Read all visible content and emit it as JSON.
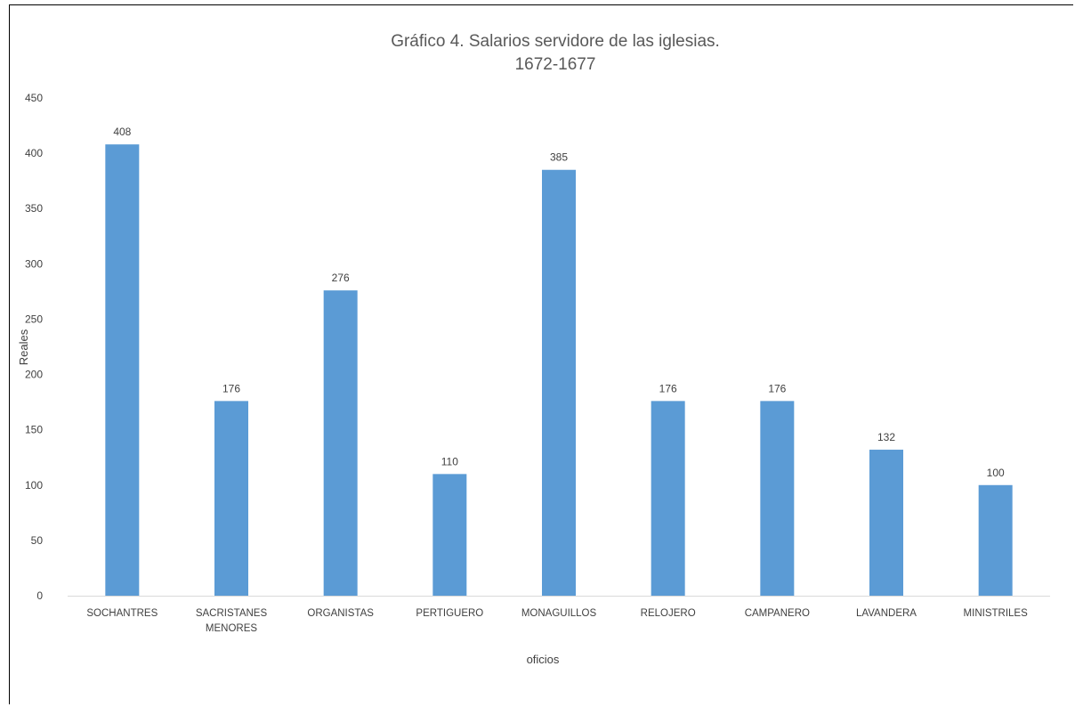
{
  "chart_data": {
    "type": "bar",
    "title_line1": "Gráfico 4. Salarios servidore de las iglesias.",
    "title_line2": "1672-1677",
    "xlabel": "oficios",
    "ylabel": "Reales",
    "ylim": [
      0,
      450
    ],
    "yticks": [
      0,
      50,
      100,
      150,
      200,
      250,
      300,
      350,
      400,
      450
    ],
    "grid": false,
    "legend": "none",
    "bar_color": "#5b9bd5",
    "categories": [
      [
        "SOCHANTRES"
      ],
      [
        "SACRISTANES",
        "MENORES"
      ],
      [
        "ORGANISTAS"
      ],
      [
        "PERTIGUERO"
      ],
      [
        "MONAGUILLOS"
      ],
      [
        "RELOJERO"
      ],
      [
        "CAMPANERO"
      ],
      [
        "LAVANDERA"
      ],
      [
        "MINISTRILES"
      ]
    ],
    "values": [
      408,
      176,
      276,
      110,
      385,
      176,
      176,
      132,
      100
    ]
  }
}
